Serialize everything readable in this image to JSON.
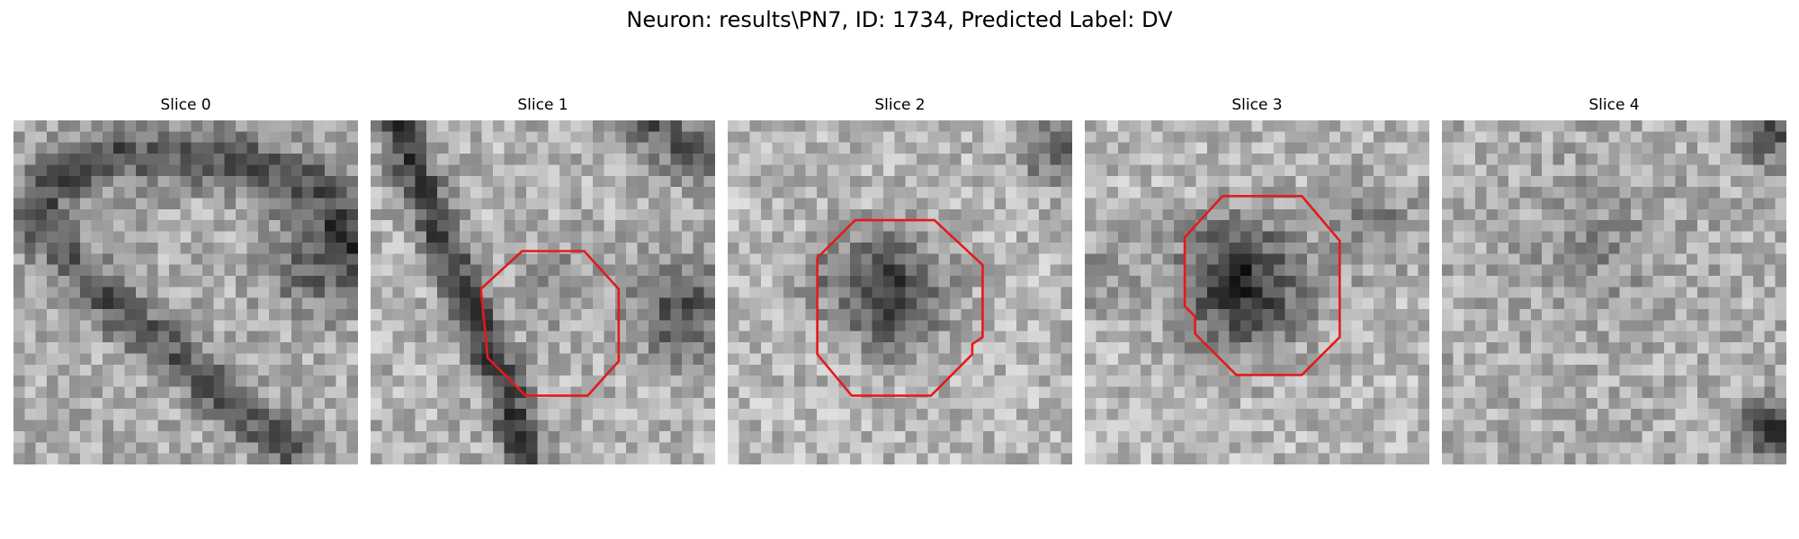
{
  "figure": {
    "title": "Neuron: results\\PN7, ID: 1734, Predicted Label: DV"
  },
  "slices": [
    {
      "title": "Slice 0",
      "has_contour": false
    },
    {
      "title": "Slice 1",
      "has_contour": true
    },
    {
      "title": "Slice 2",
      "has_contour": true
    },
    {
      "title": "Slice 3",
      "has_contour": true
    },
    {
      "title": "Slice 4",
      "has_contour": false
    }
  ],
  "colors": {
    "contour": "#e41a1c",
    "background": "#ffffff",
    "colormap": "gray"
  }
}
